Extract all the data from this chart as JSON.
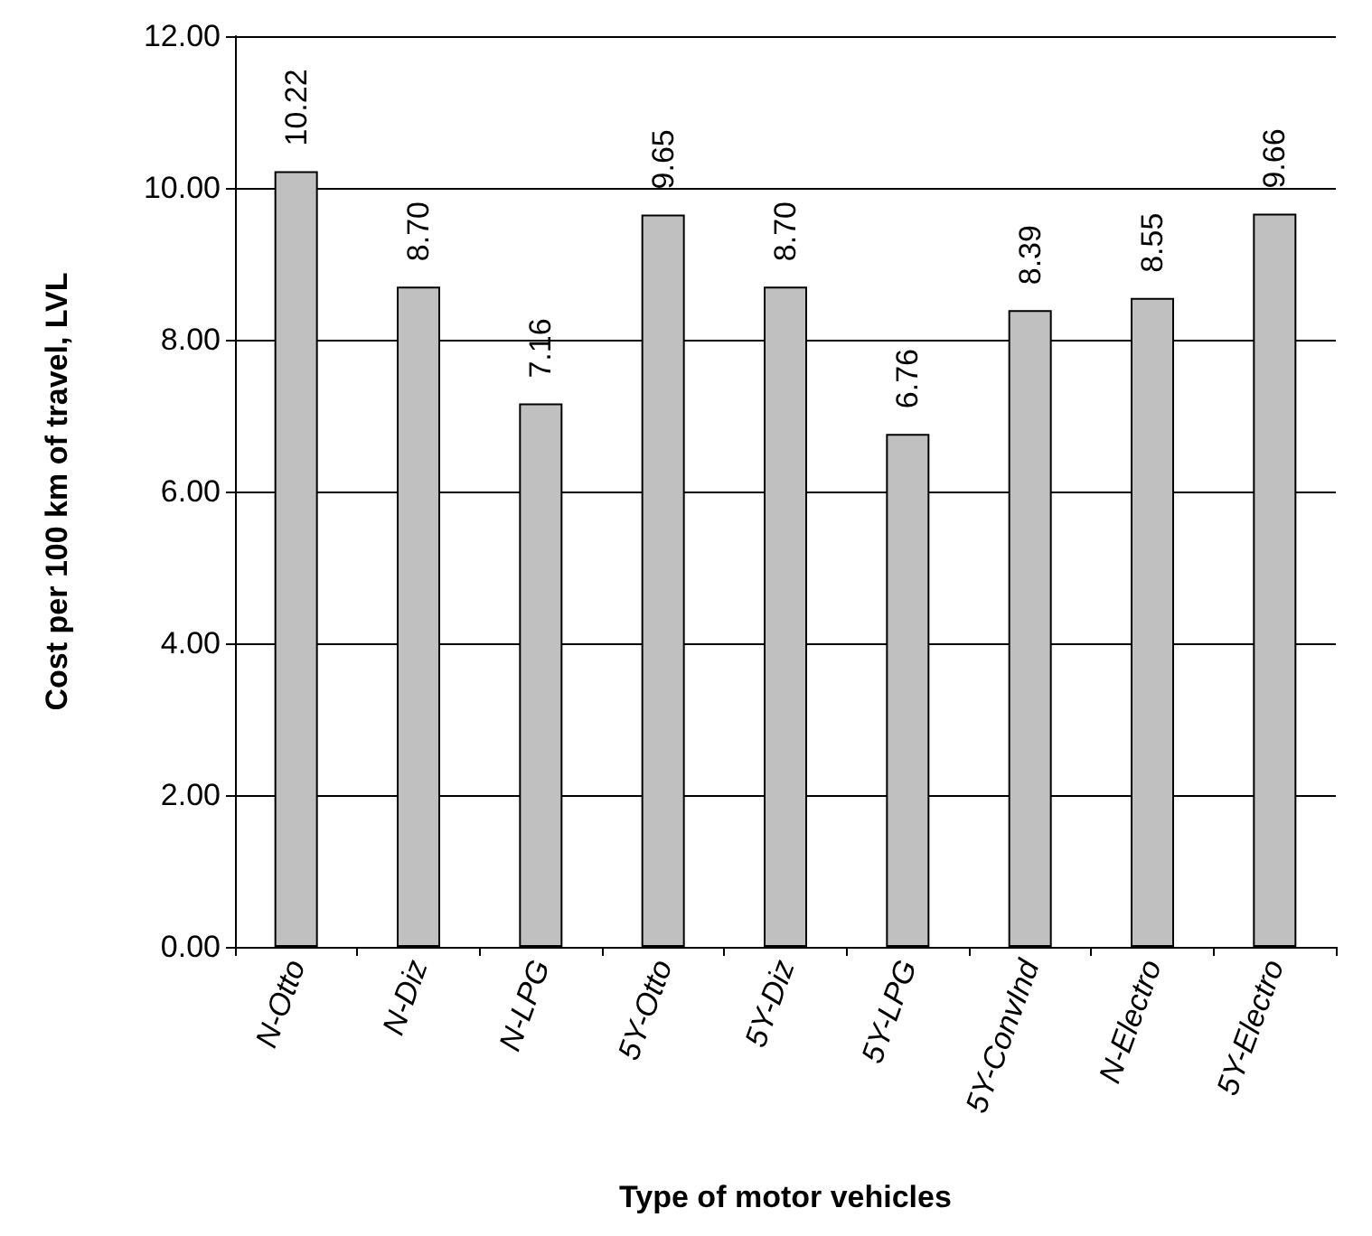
{
  "chart_data": {
    "type": "bar",
    "xlabel": "Type of motor vehicles",
    "ylabel": "Cost per 100 km of travel, LVL",
    "categories": [
      "N-Otto",
      "N-Diz",
      "N-LPG",
      "5Y-Otto",
      "5Y-Diz",
      "5Y-LPG",
      "5Y-ConvInd",
      "N-Electro",
      "5Y-Electro"
    ],
    "values": [
      10.22,
      8.7,
      7.16,
      9.65,
      8.7,
      6.76,
      8.39,
      8.55,
      9.66
    ],
    "value_labels": [
      "10.22",
      "8.70",
      "7.16",
      "9.65",
      "8.70",
      "6.76",
      "8.39",
      "8.55",
      "9.66"
    ],
    "color": "#c0c0c0",
    "ylim": [
      0,
      12
    ],
    "yticks": [
      {
        "value": 0,
        "label": "0.00"
      },
      {
        "value": 2,
        "label": "2.00"
      },
      {
        "value": 4,
        "label": "4.00"
      },
      {
        "value": 6,
        "label": "6.00"
      },
      {
        "value": 8,
        "label": "8.00"
      },
      {
        "value": 10,
        "label": "10.00"
      },
      {
        "value": 12,
        "label": "12.00"
      }
    ],
    "grid": "y"
  }
}
